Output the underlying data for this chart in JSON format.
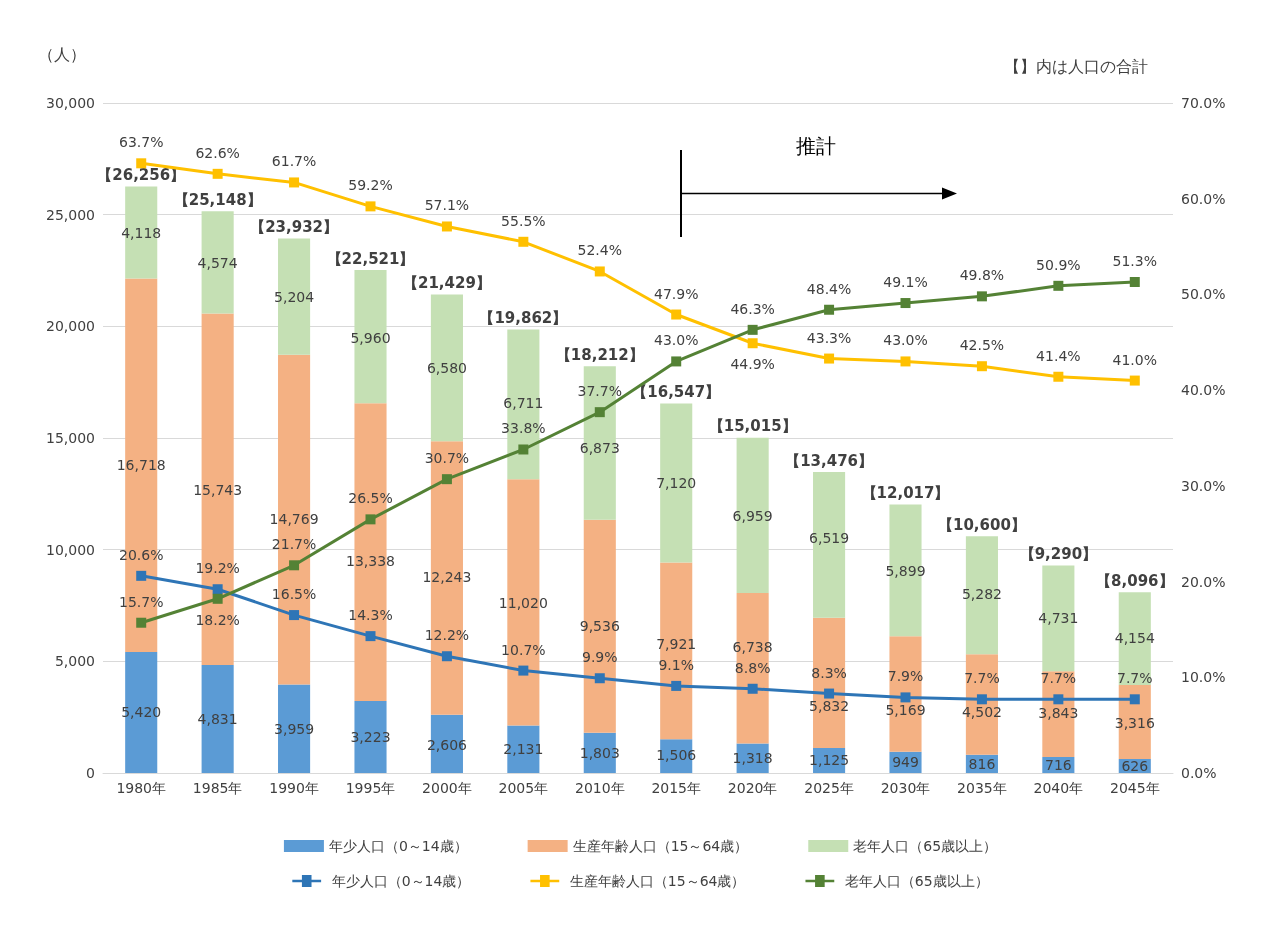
{
  "chart_data": {
    "type": "bar",
    "stacked": true,
    "ylabel": "（人）",
    "annotations": [
      "【】内は人口の合計",
      "推計"
    ],
    "categories": [
      "1980年",
      "1985年",
      "1990年",
      "1995年",
      "2000年",
      "2005年",
      "2010年",
      "2015年",
      "2020年",
      "2025年",
      "2030年",
      "2035年",
      "2040年",
      "2045年"
    ],
    "series": [
      {
        "name": "年少人口（0～14歳）",
        "color": "#5b9bd5",
        "values": [
          5420,
          4831,
          3959,
          3223,
          2606,
          2131,
          1803,
          1506,
          1318,
          1125,
          949,
          816,
          716,
          626
        ],
        "value_labels": [
          "5,420",
          "4,831",
          "3,959",
          "3,223",
          "2,606",
          "2,131",
          "1,803",
          "1,506",
          "1,318",
          "1,125",
          "949",
          "816",
          "716",
          "626"
        ]
      },
      {
        "name": "生産年齢人口（15～64歳）",
        "color": "#f4b183",
        "values": [
          16718,
          15743,
          14769,
          13338,
          12243,
          11020,
          9536,
          7921,
          6738,
          5832,
          5169,
          4502,
          3843,
          3316
        ],
        "value_labels": [
          "16,718",
          "15,743",
          "14,769",
          "13,338",
          "12,243",
          "11,020",
          "9,536",
          "7,921",
          "6,738",
          "5,832",
          "5,169",
          "4,502",
          "3,843",
          "3,316"
        ]
      },
      {
        "name": "老年人口（65歳以上）",
        "color": "#c5e0b4",
        "values": [
          4118,
          4574,
          5204,
          5960,
          6580,
          6711,
          6873,
          7120,
          6959,
          6519,
          5899,
          5282,
          4731,
          4154
        ],
        "value_labels": [
          "4,118",
          "4,574",
          "5,204",
          "5,960",
          "6,580",
          "6,711",
          "6,873",
          "7,120",
          "6,959",
          "6,519",
          "5,899",
          "5,282",
          "4,731",
          "4,154"
        ]
      },
      {
        "name": "年少人口（0～14歳）",
        "type": "line",
        "axis": "y2",
        "color": "#2e75b6",
        "values": [
          20.6,
          19.2,
          16.5,
          14.3,
          12.2,
          10.7,
          9.9,
          9.1,
          8.8,
          8.3,
          7.9,
          7.7,
          7.7,
          7.7
        ],
        "value_labels": [
          "20.6%",
          "19.2%",
          "16.5%",
          "14.3%",
          "12.2%",
          "10.7%",
          "9.9%",
          "9.1%",
          "8.8%",
          "8.3%",
          "7.9%",
          "7.7%",
          "7.7%",
          "7.7%"
        ]
      },
      {
        "name": "生産年齢人口（15～64歳）",
        "type": "line",
        "axis": "y2",
        "color": "#ffc000",
        "values": [
          63.7,
          62.6,
          61.7,
          59.2,
          57.1,
          55.5,
          52.4,
          47.9,
          44.9,
          43.3,
          43.0,
          42.5,
          41.4,
          41.0
        ],
        "value_labels": [
          "63.7%",
          "62.6%",
          "61.7%",
          "59.2%",
          "57.1%",
          "55.5%",
          "52.4%",
          "47.9%",
          "44.9%",
          "43.3%",
          "43.0%",
          "42.5%",
          "41.4%",
          "41.0%"
        ]
      },
      {
        "name": "老年人口（65歳以上）",
        "type": "line",
        "axis": "y2",
        "color": "#548235",
        "values": [
          15.7,
          18.2,
          21.7,
          26.5,
          30.7,
          33.8,
          37.7,
          43.0,
          46.3,
          48.4,
          49.1,
          49.8,
          50.9,
          51.3
        ],
        "value_labels": [
          "15.7%",
          "18.2%",
          "21.7%",
          "26.5%",
          "30.7%",
          "33.8%",
          "37.7%",
          "43.0%",
          "46.3%",
          "48.4%",
          "49.1%",
          "49.8%",
          "50.9%",
          "51.3%"
        ]
      }
    ],
    "totals": [
      "【26,256】",
      "【25,148】",
      "【23,932】",
      "【22,521】",
      "【21,429】",
      "【19,862】",
      "【18,212】",
      "【16,547】",
      "【15,015】",
      "【13,476】",
      "【12,017】",
      "【10,600】",
      "【9,290】",
      "【8,096】"
    ],
    "ylim": [
      0,
      30000
    ],
    "yticks": [
      {
        "value": 0,
        "label": "0"
      },
      {
        "value": 5000,
        "label": "5,000"
      },
      {
        "value": 10000,
        "label": "10,000"
      },
      {
        "value": 15000,
        "label": "15,000"
      },
      {
        "value": 20000,
        "label": "20,000"
      },
      {
        "value": 25000,
        "label": "25,000"
      },
      {
        "value": 30000,
        "label": "30,000"
      }
    ],
    "y2lim": [
      0,
      70
    ],
    "y2ticks": [
      {
        "value": 0,
        "label": "0.0%"
      },
      {
        "value": 10,
        "label": "10.0%"
      },
      {
        "value": 20,
        "label": "20.0%"
      },
      {
        "value": 30,
        "label": "30.0%"
      },
      {
        "value": 40,
        "label": "40.0%"
      },
      {
        "value": 50,
        "label": "50.0%"
      },
      {
        "value": 60,
        "label": "60.0%"
      },
      {
        "value": 70,
        "label": "70.0%"
      }
    ],
    "grid": "y",
    "legend": "bottom",
    "marker": "square",
    "line_style": "solid"
  }
}
